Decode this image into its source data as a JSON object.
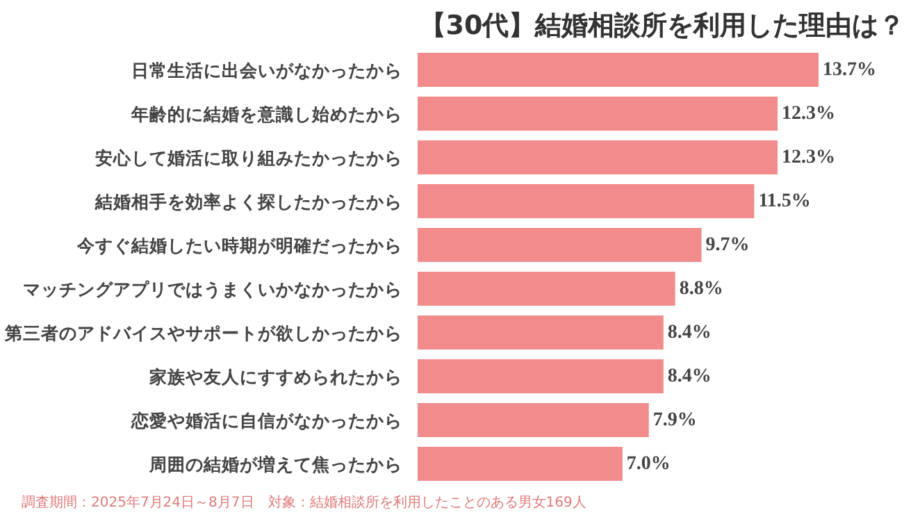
{
  "chart_data": {
    "type": "bar",
    "orientation": "horizontal",
    "title": "【30代】結婚相談所を利用した理由は？",
    "categories": [
      "日常生活に出会いがなかったから",
      "年齢的に結婚を意識し始めたから",
      "安心して婚活に取り組みたかったから",
      "結婚相手を効率よく探したかったから",
      "今すぐ結婚したい時期が明確だったから",
      "マッチングアプリではうまくいかなかったから",
      "第三者のアドバイスやサポートが欲しかったから",
      "家族や友人にすすめられたから",
      "恋愛や婚活に自信がなかったから",
      "周囲の結婚が増えて焦ったから"
    ],
    "values": [
      13.7,
      12.3,
      12.3,
      11.5,
      9.7,
      8.8,
      8.4,
      8.4,
      7.9,
      7.0
    ],
    "value_labels": [
      "13.7%",
      "12.3%",
      "12.3%",
      "11.5%",
      "9.7%",
      "8.8%",
      "8.4%",
      "8.4%",
      "7.9%",
      "7.0%"
    ],
    "color": "#f28b8b",
    "annotations": [
      "調査期間：2025年7月24日～8月7日　対象：結婚相談所を利用したことのある男女169人"
    ]
  }
}
